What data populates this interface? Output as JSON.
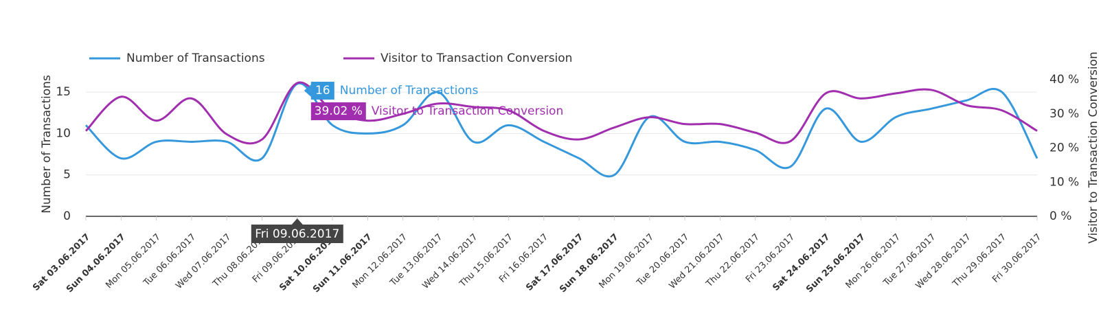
{
  "chart_data": {
    "type": "line",
    "categories": [
      "Sat 03.06.2017",
      "Sun 04.06.2017",
      "Mon 05.06.2017",
      "Tue 06.06.2017",
      "Wed 07.06.2017",
      "Thu 08.06.2017",
      "Fri 09.06.2017",
      "Sat 10.06.2017",
      "Sun 11.06.2017",
      "Mon 12.06.2017",
      "Tue 13.06.2017",
      "Wed 14.06.2017",
      "Thu 15.06.2017",
      "Fri 16.06.2017",
      "Sat 17.06.2017",
      "Sun 18.06.2017",
      "Mon 19.06.2017",
      "Tue 20.06.2017",
      "Wed 21.06.2017",
      "Thu 22.06.2017",
      "Fri 23.06.2017",
      "Sat 24.06.2017",
      "Sun 25.06.2017",
      "Mon 26.06.2017",
      "Tue 27.06.2017",
      "Wed 28.06.2017",
      "Thu 29.06.2017",
      "Fri 30.06.2017"
    ],
    "bold_categories": [
      0,
      1,
      7,
      8,
      14,
      15,
      21,
      22
    ],
    "series": [
      {
        "name": "Number of Transactions",
        "color": "#3598dc",
        "values": [
          11,
          7,
          9,
          9,
          9,
          7,
          16,
          11,
          10,
          11,
          15,
          9,
          11,
          9,
          7,
          5,
          12,
          9,
          9,
          8,
          6,
          13,
          9,
          12,
          13,
          14,
          15,
          7
        ]
      },
      {
        "name": "Visitor to Transaction Conversion",
        "color": "#a12eaf",
        "axis": "y2",
        "values": [
          25,
          35,
          28,
          34.5,
          24,
          22.5,
          39.02,
          31,
          28,
          30,
          33,
          32,
          31,
          25,
          22.5,
          26,
          29,
          27,
          27,
          24.5,
          22,
          36,
          34.5,
          36,
          37,
          32.5,
          31,
          25
        ]
      }
    ],
    "ylabel": "Number of Transactions",
    "y2label": "Visitor to Transaction Conversion",
    "ylim": [
      0,
      16.5
    ],
    "yticks": [
      0,
      5,
      10,
      15
    ],
    "y2lim": [
      0,
      40
    ],
    "y2ticks": [
      {
        "value": 0,
        "label": "0 %"
      },
      {
        "value": 10,
        "label": "10 %"
      },
      {
        "value": 20,
        "label": "20 %"
      },
      {
        "value": 30,
        "label": "30 %"
      },
      {
        "value": 40,
        "label": "40 %"
      }
    ],
    "grid": true,
    "legend": "top-left",
    "tooltip": {
      "index": 6,
      "conversion_label": "39.02 %"
    }
  }
}
